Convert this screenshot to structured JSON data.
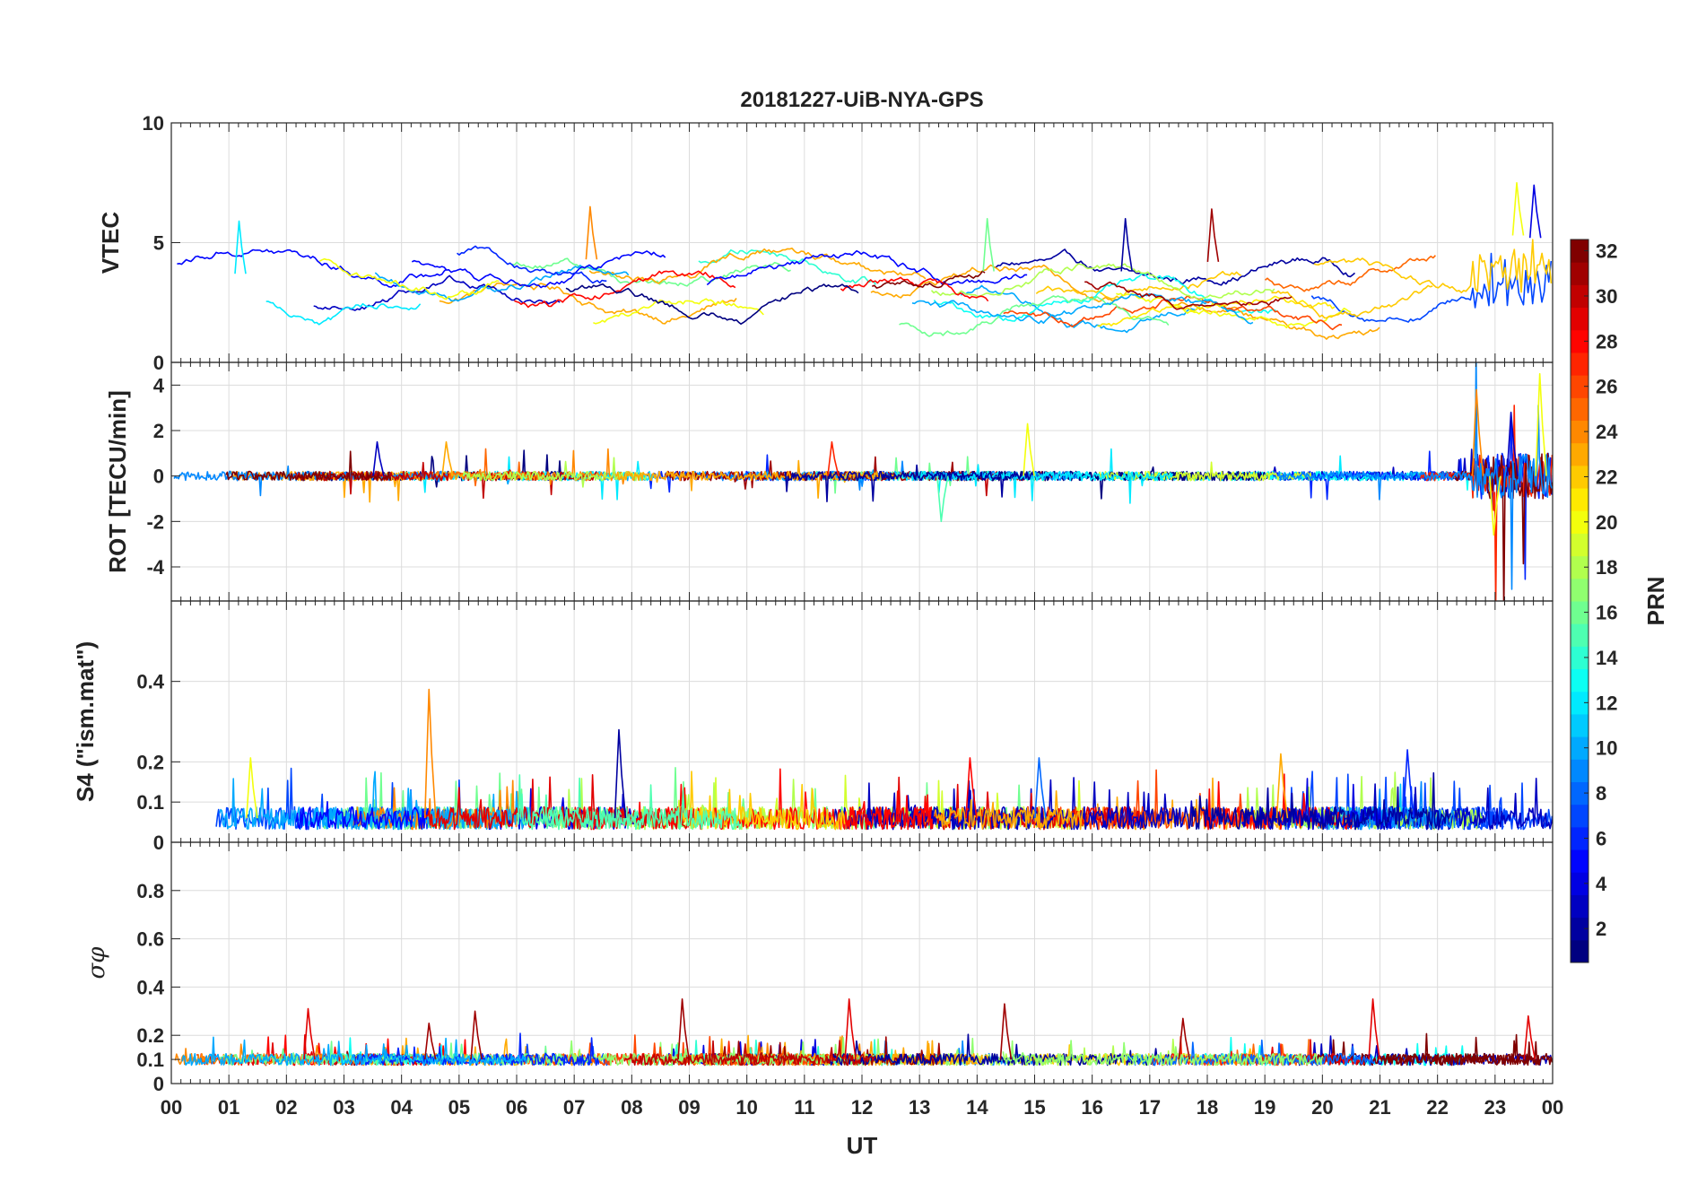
{
  "chart_data": {
    "type": "line",
    "title": "20181227-UiB-NYA-GPS",
    "xlabel": "UT",
    "x_tick_labels": [
      "00",
      "01",
      "02",
      "03",
      "04",
      "05",
      "06",
      "07",
      "08",
      "09",
      "10",
      "11",
      "12",
      "13",
      "14",
      "15",
      "16",
      "17",
      "18",
      "19",
      "20",
      "21",
      "22",
      "23",
      "00"
    ],
    "xlim_hours": [
      0,
      24
    ],
    "grid": true,
    "colormap": "jet",
    "colorbar": {
      "label": "PRN",
      "range": [
        1,
        32
      ],
      "tick_labels": [
        "2",
        "4",
        "6",
        "8",
        "10",
        "12",
        "14",
        "16",
        "18",
        "20",
        "22",
        "24",
        "26",
        "28",
        "30",
        "32"
      ],
      "placement": "right"
    },
    "panels": [
      {
        "id": "vtec",
        "ylabel": "VTEC",
        "ylim": [
          0,
          10
        ],
        "y_ticks": [
          0,
          5,
          10
        ],
        "y_tick_labels": [
          "0",
          "5",
          "10"
        ],
        "baseline": 3.0,
        "noise": 0.9,
        "features": [
          {
            "hour": 23.4,
            "value": 7.5,
            "prn": 20
          },
          {
            "hour": 23.7,
            "value": 7.4,
            "prn": 4
          },
          {
            "hour": 7.3,
            "value": 6.5,
            "prn": 24
          },
          {
            "hour": 18.1,
            "value": 6.4,
            "prn": 31
          },
          {
            "hour": 16.6,
            "value": 6.0,
            "prn": 2
          },
          {
            "hour": 14.2,
            "value": 6.0,
            "prn": 16
          },
          {
            "hour": 1.2,
            "value": 5.9,
            "prn": 12
          }
        ]
      },
      {
        "id": "rot",
        "ylabel": "ROT [TECU/min]",
        "ylim": [
          -5.5,
          5
        ],
        "y_ticks": [
          -4,
          -2,
          0,
          2,
          4
        ],
        "y_tick_labels": [
          "-4",
          "-2",
          "0",
          "2",
          "4"
        ],
        "baseline": 0,
        "noise": 0.2,
        "features": [
          {
            "hour": 22.7,
            "value": 3.8,
            "prn": 24
          },
          {
            "hour": 23.8,
            "value": 4.5,
            "prn": 20
          },
          {
            "hour": 23.0,
            "value": -2.6,
            "prn": 20
          },
          {
            "hour": 23.3,
            "value": 2.8,
            "prn": 3
          },
          {
            "hour": 14.9,
            "value": 2.3,
            "prn": 20
          },
          {
            "hour": 13.4,
            "value": -2.0,
            "prn": 15
          },
          {
            "hour": 11.5,
            "value": 1.5,
            "prn": 27
          },
          {
            "hour": 3.6,
            "value": 1.5,
            "prn": 3
          },
          {
            "hour": 4.8,
            "value": 1.5,
            "prn": 23
          }
        ]
      },
      {
        "id": "s4",
        "ylabel": "S4 (\"ism.mat\")",
        "ylim": [
          0,
          0.6
        ],
        "y_ticks": [
          0,
          0.1,
          0.2,
          0.4
        ],
        "y_tick_labels": [
          "0",
          "0.1",
          "0.2",
          "0.4"
        ],
        "baseline": 0.06,
        "noise": 0.035,
        "features": [
          {
            "hour": 4.5,
            "value": 0.38,
            "prn": 24
          },
          {
            "hour": 7.8,
            "value": 0.28,
            "prn": 2
          },
          {
            "hour": 21.5,
            "value": 0.23,
            "prn": 6
          },
          {
            "hour": 1.4,
            "value": 0.21,
            "prn": 20
          },
          {
            "hour": 13.9,
            "value": 0.21,
            "prn": 28
          },
          {
            "hour": 15.1,
            "value": 0.21,
            "prn": 8
          },
          {
            "hour": 19.3,
            "value": 0.22,
            "prn": 23
          }
        ]
      },
      {
        "id": "sigma",
        "ylabel": "σφ",
        "ylim": [
          0,
          1.0
        ],
        "y_ticks": [
          0,
          0.1,
          0.2,
          0.4,
          0.6,
          0.8
        ],
        "y_tick_labels": [
          "0",
          "0.1",
          "0.2",
          "0.4",
          "0.6",
          "0.8"
        ],
        "baseline": 0.1,
        "noise": 0.03,
        "features": [
          {
            "hour": 2.4,
            "value": 0.31,
            "prn": 29
          },
          {
            "hour": 4.5,
            "value": 0.25,
            "prn": 31
          },
          {
            "hour": 5.3,
            "value": 0.3,
            "prn": 31
          },
          {
            "hour": 8.9,
            "value": 0.35,
            "prn": 31
          },
          {
            "hour": 11.8,
            "value": 0.35,
            "prn": 29
          },
          {
            "hour": 14.5,
            "value": 0.33,
            "prn": 31
          },
          {
            "hour": 17.6,
            "value": 0.27,
            "prn": 31
          },
          {
            "hour": 20.9,
            "value": 0.35,
            "prn": 29
          },
          {
            "hour": 23.6,
            "value": 0.28,
            "prn": 29
          }
        ]
      }
    ]
  }
}
